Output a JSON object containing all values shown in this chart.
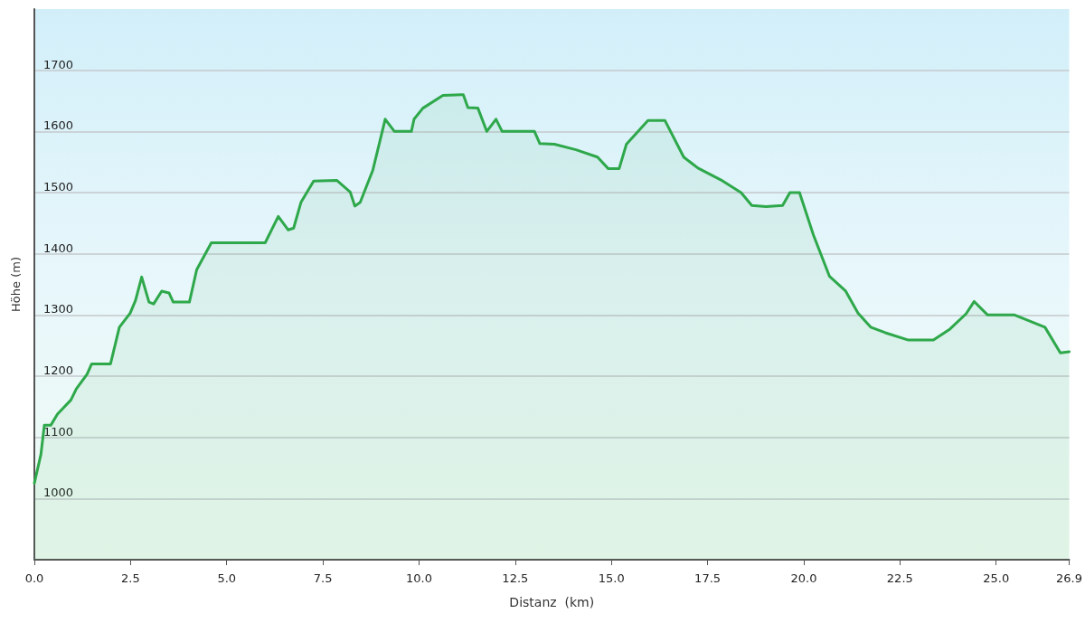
{
  "chart_data": {
    "type": "area",
    "xlabel": "Distanz  (km)",
    "ylabel": "Höhe (m)",
    "x": [
      0,
      0.17,
      0.26,
      0.43,
      0.6,
      0.95,
      1.09,
      1.37,
      1.49,
      1.98,
      2.21,
      2.49,
      2.63,
      2.79,
      2.98,
      3.1,
      3.31,
      3.5,
      3.61,
      4.03,
      4.22,
      4.6,
      6.0,
      6.34,
      6.6,
      6.74,
      6.93,
      7.26,
      7.86,
      8.21,
      8.33,
      8.47,
      8.8,
      9.12,
      9.36,
      9.8,
      9.87,
      10.1,
      10.62,
      11.15,
      11.27,
      11.53,
      11.76,
      12.0,
      12.16,
      13.0,
      13.14,
      13.52,
      14.08,
      14.64,
      14.92,
      15.2,
      15.39,
      15.95,
      16.39,
      16.88,
      17.25,
      17.84,
      18.37,
      18.65,
      19.02,
      19.45,
      19.64,
      19.89,
      20.25,
      20.67,
      21.09,
      21.41,
      21.74,
      22.12,
      22.72,
      23.37,
      23.8,
      24.22,
      24.43,
      24.78,
      25.48,
      26.27,
      26.67,
      26.9
    ],
    "series": [
      {
        "color": "#2ea84a",
        "values": [
          1025,
          1072,
          1120,
          1120,
          1138,
          1161,
          1179,
          1203,
          1220,
          1220,
          1280,
          1303,
          1324,
          1362,
          1321,
          1318,
          1339,
          1336,
          1321,
          1321,
          1374,
          1418,
          1418,
          1461,
          1439,
          1442,
          1484,
          1519,
          1520,
          1501,
          1478,
          1484,
          1537,
          1620,
          1600,
          1600,
          1620,
          1638,
          1659,
          1660,
          1639,
          1638,
          1600,
          1620,
          1600,
          1600,
          1580,
          1579,
          1570,
          1558,
          1539,
          1539,
          1579,
          1618,
          1618,
          1558,
          1540,
          1521,
          1500,
          1479,
          1477,
          1479,
          1500,
          1500,
          1431,
          1363,
          1339,
          1303,
          1280,
          1271,
          1259,
          1259,
          1277,
          1302,
          1322,
          1300,
          1300,
          1280,
          1238,
          1240
        ]
      }
    ],
    "xlim": [
      0,
      26.9
    ],
    "xticks": [
      {
        "value": 0,
        "label": "0.0"
      },
      2.5,
      {
        "value": 5,
        "label": "5.0"
      },
      7.5,
      {
        "value": 10,
        "label": "10.0"
      },
      12.5,
      {
        "value": 15,
        "label": "15.0"
      },
      17.5,
      {
        "value": 20,
        "label": "20.0"
      },
      22.5,
      {
        "value": 25,
        "label": "25.0"
      },
      26.9
    ],
    "ylim": [
      900,
      1800
    ],
    "yticks": [
      1000,
      1100,
      1200,
      1300,
      1400,
      1500,
      1600,
      1700
    ],
    "grid": "y",
    "marker": "none",
    "line_style": "solid"
  }
}
